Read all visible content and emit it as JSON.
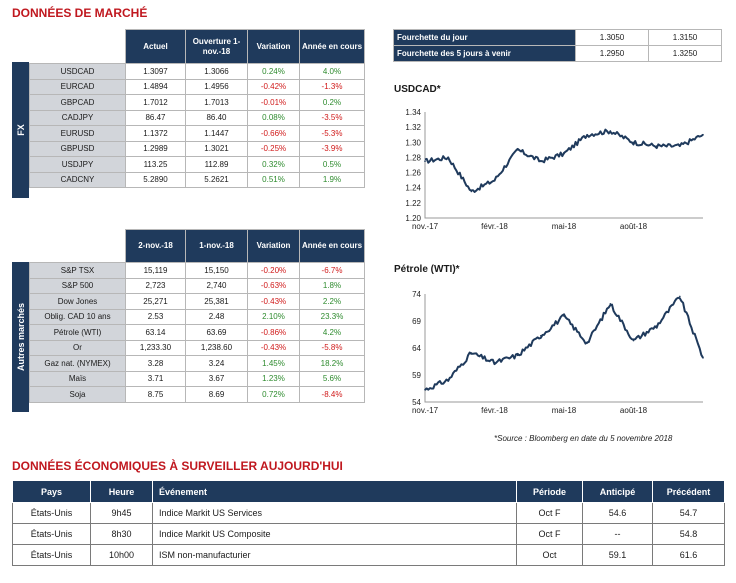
{
  "market_title": "DONNÉES DE MARCHÉ",
  "fx": {
    "side_label": "FX",
    "headers": [
      "Actuel",
      "Ouverture 1-nov.-18",
      "Variation",
      "Année en cours"
    ],
    "rows": [
      {
        "label": "USDCAD",
        "a": "1.3097",
        "b": "1.3066",
        "v": "0.24%",
        "y": "4.0%",
        "vc": "pos",
        "yc": "pos"
      },
      {
        "label": "EURCAD",
        "a": "1.4894",
        "b": "1.4956",
        "v": "-0.42%",
        "y": "-1.3%",
        "vc": "neg",
        "yc": "neg"
      },
      {
        "label": "GBPCAD",
        "a": "1.7012",
        "b": "1.7013",
        "v": "-0.01%",
        "y": "0.2%",
        "vc": "neg",
        "yc": "pos"
      },
      {
        "label": "CADJPY",
        "a": "86.47",
        "b": "86.40",
        "v": "0.08%",
        "y": "-3.5%",
        "vc": "pos",
        "yc": "neg"
      },
      {
        "label": "EURUSD",
        "a": "1.1372",
        "b": "1.1447",
        "v": "-0.66%",
        "y": "-5.3%",
        "vc": "neg",
        "yc": "neg"
      },
      {
        "label": "GBPUSD",
        "a": "1.2989",
        "b": "1.3021",
        "v": "-0.25%",
        "y": "-3.9%",
        "vc": "neg",
        "yc": "neg"
      },
      {
        "label": "USDJPY",
        "a": "113.25",
        "b": "112.89",
        "v": "0.32%",
        "y": "0.5%",
        "vc": "pos",
        "yc": "pos"
      },
      {
        "label": "CADCNY",
        "a": "5.2890",
        "b": "5.2621",
        "v": "0.51%",
        "y": "1.9%",
        "vc": "pos",
        "yc": "pos"
      }
    ]
  },
  "other": {
    "side_label": "Autres marchés",
    "headers": [
      "2-nov.-18",
      "1-nov.-18",
      "Variation",
      "Année en cours"
    ],
    "rows": [
      {
        "label": "S&P TSX",
        "a": "15,119",
        "b": "15,150",
        "v": "-0.20%",
        "y": "-6.7%",
        "vc": "neg",
        "yc": "neg"
      },
      {
        "label": "S&P 500",
        "a": "2,723",
        "b": "2,740",
        "v": "-0.63%",
        "y": "1.8%",
        "vc": "neg",
        "yc": "pos"
      },
      {
        "label": "Dow Jones",
        "a": "25,271",
        "b": "25,381",
        "v": "-0.43%",
        "y": "2.2%",
        "vc": "neg",
        "yc": "pos"
      },
      {
        "label": "Oblig. CAD 10 ans",
        "a": "2.53",
        "b": "2.48",
        "v": "2.10%",
        "y": "23.3%",
        "vc": "pos",
        "yc": "pos"
      },
      {
        "label": "Pétrole (WTI)",
        "a": "63.14",
        "b": "63.69",
        "v": "-0.86%",
        "y": "4.2%",
        "vc": "neg",
        "yc": "pos"
      },
      {
        "label": "Or",
        "a": "1,233.30",
        "b": "1,238.60",
        "v": "-0.43%",
        "y": "-5.8%",
        "vc": "neg",
        "yc": "neg"
      },
      {
        "label": "Gaz nat. (NYMEX)",
        "a": "3.28",
        "b": "3.24",
        "v": "1.45%",
        "y": "18.2%",
        "vc": "pos",
        "yc": "pos"
      },
      {
        "label": "Maïs",
        "a": "3.71",
        "b": "3.67",
        "v": "1.23%",
        "y": "5.6%",
        "vc": "pos",
        "yc": "pos"
      },
      {
        "label": "Soja",
        "a": "8.75",
        "b": "8.69",
        "v": "0.72%",
        "y": "-8.4%",
        "vc": "pos",
        "yc": "neg"
      }
    ]
  },
  "fork": {
    "rows": [
      {
        "label": "Fourchette du jour",
        "lo": "1.3050",
        "hi": "1.3150"
      },
      {
        "label": "Fourchette des 5 jours à venir",
        "lo": "1.2950",
        "hi": "1.3250"
      }
    ]
  },
  "chart_data": [
    {
      "type": "line",
      "title": "USDCAD*",
      "x": [
        "nov.-17",
        "déc.-17",
        "janv.-18",
        "févr.-18",
        "mars-18",
        "avr.-18",
        "mai-18",
        "juin-18",
        "juil.-18",
        "août-18",
        "sept.-18",
        "oct.-18",
        "nov.-18"
      ],
      "x_tick_labels": [
        "nov.-17",
        "févr.-18",
        "mai-18",
        "août-18"
      ],
      "values": [
        1.275,
        1.28,
        1.235,
        1.25,
        1.29,
        1.275,
        1.285,
        1.31,
        1.315,
        1.3,
        1.295,
        1.295,
        1.31
      ],
      "ylim": [
        1.2,
        1.34
      ],
      "y_ticks": [
        "1.34",
        "1.32",
        "1.30",
        "1.28",
        "1.26",
        "1.24",
        "1.22",
        "1.20"
      ],
      "grid": false,
      "color": "#1f3a5c"
    },
    {
      "type": "line",
      "title": "Pétrole (WTI)*",
      "x": [
        "nov.-17",
        "déc.-17",
        "janv.-18",
        "févr.-18",
        "mars-18",
        "avr.-18",
        "mai-18",
        "juin-18",
        "juil.-18",
        "août-18",
        "sept.-18",
        "oct.-18",
        "nov.-18"
      ],
      "x_tick_labels": [
        "nov.-17",
        "févr.-18",
        "mai-18",
        "août-18"
      ],
      "values": [
        56.5,
        58.5,
        64.0,
        62.0,
        63.5,
        67.5,
        71.5,
        66.0,
        74.0,
        66.5,
        69.5,
        75.5,
        63.0
      ],
      "ylim": [
        54,
        76
      ],
      "y_ticks": [
        "74",
        "69",
        "64",
        "59",
        "54"
      ],
      "grid": false,
      "color": "#1f3a5c"
    }
  ],
  "source": "*Source : Bloomberg en date du  5 novembre 2018",
  "eco_title": "DONNÉES ÉCONOMIQUES À SURVEILLER AUJOURD'HUI",
  "eco": {
    "headers": [
      "Pays",
      "Heure",
      "Événement",
      "Période",
      "Anticipé",
      "Précédent"
    ],
    "rows": [
      {
        "pays": "États-Unis",
        "heure": "9h45",
        "evt": "Indice Markit US Services",
        "per": "Oct F",
        "ant": "54.6",
        "prec": "54.7"
      },
      {
        "pays": "États-Unis",
        "heure": "8h30",
        "evt": "Indice Markit US Composite",
        "per": "Oct F",
        "ant": "--",
        "prec": "54.8"
      },
      {
        "pays": "États-Unis",
        "heure": "10h00",
        "evt": "ISM non-manufacturier",
        "per": "Oct",
        "ant": "59.1",
        "prec": "61.6"
      }
    ]
  }
}
